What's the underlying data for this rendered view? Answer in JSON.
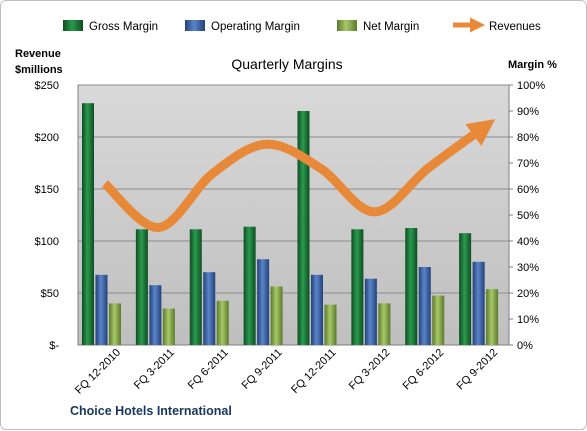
{
  "chart_data": {
    "type": "bar",
    "title": "Quarterly Margins",
    "footer": "Choice Hotels International",
    "y_left_title_line1": "Revenue",
    "y_left_title_line2": "$millions",
    "y_right_title": "Margin %",
    "categories": [
      "FQ 12-2010",
      "FQ 3-2011",
      "FQ 6-2011",
      "FQ 9-2011",
      "FQ 12-2011",
      "FQ 3-2012",
      "FQ 6-2012",
      "FQ 9-2012"
    ],
    "y_left_ticks": [
      "$-",
      "$50",
      "$100",
      "$150",
      "$200",
      "$250"
    ],
    "y_left_range": [
      0,
      250
    ],
    "y_right_ticks": [
      "0%",
      "10%",
      "20%",
      "30%",
      "40%",
      "50%",
      "60%",
      "70%",
      "80%",
      "90%",
      "100%"
    ],
    "y_right_range": [
      0,
      100
    ],
    "grid": true,
    "legend_position": "top",
    "series": [
      {
        "name": "Gross Margin",
        "axis": "right",
        "kind": "bar",
        "color": "#1e7a3c",
        "values": [
          93,
          44.5,
          44.5,
          45.5,
          90,
          44.5,
          45,
          43
        ]
      },
      {
        "name": "Operating Margin",
        "axis": "right",
        "kind": "bar",
        "color": "#3e67a8",
        "values": [
          27,
          23,
          28,
          33,
          27,
          25.5,
          30,
          32
        ]
      },
      {
        "name": "Net Margin",
        "axis": "right",
        "kind": "bar",
        "color": "#8cb04f",
        "values": [
          16,
          14,
          17,
          22.5,
          15.5,
          16,
          19,
          21.5
        ]
      },
      {
        "name": "Revenues",
        "axis": "left",
        "kind": "line",
        "color": "#e8893a",
        "values": [
          155,
          113,
          165,
          193,
          170,
          128,
          170,
          208
        ]
      }
    ]
  }
}
